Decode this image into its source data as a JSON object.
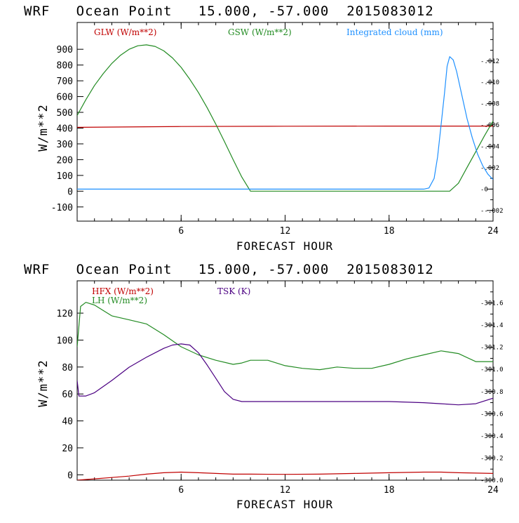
{
  "chart_data": [
    {
      "type": "line",
      "title": "WRF   Ocean Point   15.000, -57.000  2015083012",
      "xlabel": "FORECAST HOUR",
      "ylabel": "W/m**2",
      "xlim": [
        0,
        24
      ],
      "ylim": [
        -190,
        1070
      ],
      "xticks": [
        6,
        12,
        18,
        24
      ],
      "yticks": [
        -100,
        0,
        100,
        200,
        300,
        400,
        500,
        600,
        700,
        800,
        900
      ],
      "y2lim": [
        -0.003,
        0.0156
      ],
      "y2ticks": [
        -0.002,
        0,
        0.002,
        0.004,
        0.006,
        0.008,
        0.01,
        0.012
      ],
      "y2ticklabels": [
        "-.002",
        "0",
        ".002",
        ".004",
        ".006",
        ".008",
        ".010",
        ".012"
      ],
      "series": [
        {
          "name": "GLW (W/m**2)",
          "axis": "left",
          "color": "#c00000",
          "x": [
            0,
            6,
            12,
            18,
            24
          ],
          "values": [
            405,
            410,
            412,
            413,
            413
          ]
        },
        {
          "name": "GSW (W/m**2)",
          "axis": "left",
          "color": "#228B22",
          "x": [
            0,
            0.5,
            1,
            1.5,
            2,
            2.5,
            3,
            3.5,
            4,
            4.5,
            5,
            5.5,
            6,
            6.5,
            7,
            7.5,
            8,
            8.5,
            9,
            9.5,
            10,
            12,
            14,
            16,
            18,
            20,
            21,
            21.5,
            22,
            22.5,
            23,
            23.5,
            24
          ],
          "values": [
            480,
            580,
            670,
            745,
            810,
            862,
            900,
            922,
            928,
            918,
            890,
            845,
            785,
            710,
            625,
            530,
            425,
            315,
            200,
            90,
            0,
            0,
            0,
            0,
            0,
            0,
            0,
            0,
            50,
            150,
            250,
            350,
            445
          ]
        },
        {
          "name": "Integrated cloud (mm)",
          "axis": "right",
          "color": "#1e90ff",
          "x": [
            0,
            5,
            10,
            15,
            19,
            20,
            20.3,
            20.6,
            20.8,
            21,
            21.2,
            21.35,
            21.5,
            21.7,
            21.9,
            22.2,
            22.5,
            22.8,
            23.1,
            23.4,
            23.7,
            24
          ],
          "values": [
            0,
            0,
            0,
            0,
            0,
            0,
            0.0001,
            0.001,
            0.003,
            0.006,
            0.009,
            0.0115,
            0.0124,
            0.0121,
            0.011,
            0.0088,
            0.0066,
            0.0048,
            0.0033,
            0.0022,
            0.0014,
            0.0009
          ]
        }
      ]
    },
    {
      "type": "line",
      "title": "WRF   Ocean Point   15.000, -57.000  2015083012",
      "xlabel": "FORECAST HOUR",
      "ylabel": "W/m**2",
      "xlim": [
        0,
        24
      ],
      "ylim": [
        -4,
        144
      ],
      "xticks": [
        6,
        12,
        18,
        24
      ],
      "yticks": [
        0,
        20,
        40,
        60,
        80,
        100,
        120
      ],
      "y2lim": [
        300.0,
        301.8
      ],
      "y2ticks": [
        300.0,
        300.2,
        300.4,
        300.6,
        300.8,
        301.0,
        301.2,
        301.4,
        301.6
      ],
      "y2ticklabels": [
        "300.0",
        "300.2",
        "300.4",
        "300.6",
        "300.8",
        "301.0",
        "301.2",
        "301.4",
        "301.6"
      ],
      "series": [
        {
          "name": "HFX (W/m**2)",
          "axis": "left",
          "color": "#c00000",
          "x": [
            0,
            1,
            2,
            3,
            4,
            5,
            6,
            7,
            8,
            9,
            10,
            12,
            14,
            16,
            18,
            20,
            21,
            22,
            24
          ],
          "values": [
            -4,
            -3,
            -2,
            -1,
            0.5,
            1.5,
            2,
            1.5,
            1,
            0.5,
            0.5,
            0.3,
            0.5,
            1,
            1.5,
            2,
            2,
            1.5,
            1
          ]
        },
        {
          "name": "LH (W/m**2)",
          "axis": "left",
          "color": "#228B22",
          "x": [
            0,
            0.2,
            0.5,
            1,
            1.5,
            2,
            3,
            4,
            5,
            6,
            7,
            8,
            9,
            9.5,
            10,
            11,
            12,
            13,
            14,
            15,
            16,
            17,
            18,
            19,
            20,
            21,
            22,
            23,
            24
          ],
          "values": [
            95,
            125,
            128,
            126,
            122,
            118,
            115,
            112,
            104,
            95,
            89,
            85,
            82,
            83,
            85,
            85,
            81,
            79,
            78,
            80,
            79,
            79,
            82,
            86,
            89,
            92,
            90,
            84,
            84
          ]
        },
        {
          "name": "TSK (K)",
          "axis": "right",
          "color": "#4b0082",
          "x": [
            0,
            0.1,
            0.5,
            1,
            2,
            3,
            4,
            5,
            5.5,
            6,
            6.5,
            7,
            7.5,
            8,
            8.5,
            9,
            9.5,
            10,
            12,
            14,
            16,
            18,
            20,
            21,
            22,
            23,
            24
          ],
          "values": [
            300.9,
            300.76,
            300.76,
            300.79,
            300.9,
            301.02,
            301.11,
            301.19,
            301.22,
            301.23,
            301.22,
            301.15,
            301.04,
            300.92,
            300.8,
            300.73,
            300.71,
            300.71,
            300.71,
            300.71,
            300.71,
            300.71,
            300.7,
            300.69,
            300.68,
            300.69,
            300.74
          ]
        }
      ]
    }
  ]
}
